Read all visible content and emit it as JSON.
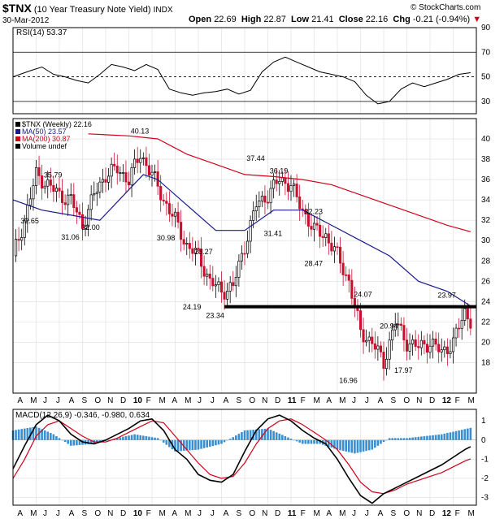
{
  "header": {
    "ticker": "$TNX",
    "name": "(10 Year Treasury Note Yield)",
    "exchange": "INDX",
    "date": "30-Mar-2012",
    "open_label": "Open",
    "open": "22.69",
    "high_label": "High",
    "high": "22.87",
    "low_label": "Low",
    "low": "21.41",
    "close_label": "Close",
    "close": "22.16",
    "chg_label": "Chg",
    "chg": "-0.21 (-0.94%)",
    "chg_arrow": "▼",
    "watermark": "© StockCharts.com"
  },
  "colors": {
    "rsi_line": "#000000",
    "ma50": "#1a1a8c",
    "ma200": "#d0021b",
    "candle_up": "#000000",
    "candle_down": "#c8102e",
    "macd_hist": "#3a8fd0",
    "macd_line": "#000000",
    "macd_signal": "#d0021b",
    "support_line": "#000000"
  },
  "chart_data": [
    {
      "type": "line",
      "panel": "rsi",
      "label": "RSI(14) 53.37",
      "ylim": [
        20,
        90
      ],
      "y_ticks": [
        30,
        50,
        70,
        90
      ],
      "ref_lines": [
        30,
        50,
        70
      ],
      "x_weeks": [
        0,
        6,
        10,
        14,
        18,
        22,
        26,
        30,
        34,
        38,
        42,
        46,
        50,
        54,
        58,
        62,
        66,
        70,
        74,
        78,
        82,
        86,
        90,
        94,
        98,
        102,
        106,
        110,
        114,
        118,
        122,
        126,
        130,
        134,
        138,
        142,
        146,
        150,
        154,
        158
      ],
      "values": [
        50,
        55,
        58,
        52,
        50,
        47,
        45,
        52,
        60,
        58,
        55,
        60,
        56,
        40,
        37,
        35,
        37,
        38,
        40,
        36,
        39,
        54,
        62,
        66,
        62,
        58,
        54,
        52,
        50,
        46,
        35,
        28,
        30,
        40,
        45,
        42,
        45,
        48,
        52,
        53.37
      ]
    },
    {
      "type": "candlestick",
      "panel": "price",
      "legend": [
        "$TNX (Weekly) 22.16",
        "MA(50) 23.57",
        "MA(200) 30.87",
        "Volume undef"
      ],
      "ylim": [
        15,
        42
      ],
      "y_ticks": [
        18,
        20,
        22,
        24,
        26,
        28,
        30,
        32,
        34,
        36,
        38,
        40
      ],
      "x_start": "Apr 2009",
      "x_end": "Mar 2012",
      "x_labels": [
        "A",
        "M",
        "J",
        "J",
        "A",
        "S",
        "O",
        "N",
        "D",
        "10",
        "F",
        "M",
        "A",
        "M",
        "J",
        "J",
        "A",
        "S",
        "O",
        "N",
        "D",
        "11",
        "F",
        "M",
        "A",
        "M",
        "J",
        "J",
        "A",
        "S",
        "O",
        "N",
        "D",
        "12",
        "F",
        "M"
      ],
      "close_anchors": {
        "x_weeks": [
          0,
          4,
          8,
          12,
          16,
          20,
          24,
          28,
          32,
          36,
          40,
          44,
          48,
          52,
          56,
          60,
          64,
          68,
          72,
          76,
          80,
          84,
          88,
          92,
          96,
          98,
          100,
          104,
          108,
          112,
          116,
          120,
          124,
          128,
          132,
          136,
          140,
          144,
          148,
          152,
          156,
          158
        ],
        "values": [
          28.5,
          32.0,
          36.5,
          35.5,
          34.5,
          34.0,
          31.5,
          34.5,
          36.5,
          37.0,
          36.0,
          38.5,
          36.5,
          34.0,
          32.0,
          29.5,
          28.5,
          26.0,
          25.0,
          25.5,
          29.5,
          33.5,
          34.5,
          36.0,
          35.5,
          34.0,
          33.0,
          31.0,
          30.5,
          28.5,
          26.0,
          21.0,
          20.0,
          18.0,
          22.0,
          20.0,
          19.5,
          20.0,
          19.0,
          20.0,
          23.0,
          22.16
        ]
      },
      "ma50": {
        "x_weeks": [
          0,
          10,
          20,
          30,
          40,
          45,
          50,
          60,
          70,
          80,
          90,
          100,
          110,
          120,
          130,
          140,
          150,
          158
        ],
        "values": [
          34.0,
          33.0,
          32.5,
          32.0,
          35.0,
          36.5,
          36.0,
          33.5,
          31.0,
          31.0,
          33.0,
          33.0,
          31.5,
          30.0,
          28.5,
          26.0,
          25.0,
          23.57
        ]
      },
      "ma200": {
        "x_weeks": [
          26,
          40,
          50,
          60,
          70,
          80,
          90,
          100,
          110,
          120,
          130,
          140,
          150,
          158
        ],
        "values": [
          40.5,
          40.3,
          40.0,
          38.5,
          37.5,
          36.5,
          36.3,
          36.0,
          35.5,
          34.5,
          33.5,
          32.5,
          31.5,
          30.87
        ]
      },
      "support_line": {
        "x_weeks": [
          73,
          160
        ],
        "value": 23.5
      },
      "annotations": [
        {
          "text": "32.65",
          "week": 6,
          "value": 32.65,
          "pos": "below"
        },
        {
          "text": "35.79",
          "week": 14,
          "value": 35.79,
          "pos": "above"
        },
        {
          "text": "31.06",
          "week": 20,
          "value": 31.06,
          "pos": "below"
        },
        {
          "text": "32.00",
          "week": 27,
          "value": 32.0,
          "pos": "below"
        },
        {
          "text": "40.13",
          "week": 44,
          "value": 40.13,
          "pos": "above"
        },
        {
          "text": "30.98",
          "week": 53,
          "value": 30.98,
          "pos": "below"
        },
        {
          "text": "28.27",
          "week": 66,
          "value": 28.27,
          "pos": "above"
        },
        {
          "text": "24.19",
          "week": 62,
          "value": 24.19,
          "pos": "below"
        },
        {
          "text": "23.34",
          "week": 70,
          "value": 23.34,
          "pos": "below"
        },
        {
          "text": "37.44",
          "week": 84,
          "value": 37.44,
          "pos": "above"
        },
        {
          "text": "36.19",
          "week": 92,
          "value": 36.19,
          "pos": "above"
        },
        {
          "text": "31.41",
          "week": 90,
          "value": 31.41,
          "pos": "below"
        },
        {
          "text": "32.23",
          "week": 104,
          "value": 32.23,
          "pos": "above"
        },
        {
          "text": "28.47",
          "week": 104,
          "value": 28.47,
          "pos": "below"
        },
        {
          "text": "24.07",
          "week": 121,
          "value": 24.07,
          "pos": "above"
        },
        {
          "text": "16.96",
          "week": 116,
          "value": 16.96,
          "pos": "below"
        },
        {
          "text": "20.94",
          "week": 130,
          "value": 20.94,
          "pos": "above"
        },
        {
          "text": "17.97",
          "week": 135,
          "value": 17.97,
          "pos": "below"
        },
        {
          "text": "23.97",
          "week": 150,
          "value": 23.97,
          "pos": "above"
        }
      ]
    },
    {
      "type": "line",
      "panel": "macd",
      "label": "MACD(12,26,9) -0.346, -0.980, 0.634",
      "ylim": [
        -3.4,
        1.6
      ],
      "y_ticks": [
        -3,
        -2,
        -1,
        0,
        1
      ],
      "x_weeks": [
        0,
        4,
        8,
        12,
        16,
        20,
        24,
        28,
        32,
        36,
        40,
        44,
        48,
        52,
        56,
        60,
        64,
        68,
        72,
        76,
        80,
        84,
        88,
        92,
        96,
        100,
        104,
        108,
        112,
        116,
        120,
        124,
        128,
        132,
        136,
        140,
        144,
        148,
        152,
        156,
        158
      ],
      "macd": [
        -1.5,
        -0.3,
        0.8,
        1.3,
        1.0,
        0.3,
        -0.1,
        -0.2,
        0.0,
        0.3,
        0.6,
        1.0,
        1.1,
        0.5,
        -0.5,
        -1.0,
        -1.8,
        -2.1,
        -2.2,
        -1.8,
        -0.6,
        0.5,
        1.1,
        1.3,
        1.0,
        0.5,
        0.1,
        -0.2,
        -1.0,
        -2.0,
        -2.9,
        -3.3,
        -2.8,
        -2.5,
        -2.2,
        -1.9,
        -1.6,
        -1.3,
        -0.9,
        -0.5,
        -0.346
      ],
      "signal": [
        -2.0,
        -1.0,
        0.2,
        0.8,
        1.0,
        0.6,
        0.2,
        -0.1,
        -0.1,
        0.1,
        0.4,
        0.7,
        1.0,
        0.9,
        0.2,
        -0.5,
        -1.2,
        -1.8,
        -2.0,
        -1.9,
        -1.2,
        -0.2,
        0.6,
        1.0,
        1.1,
        0.8,
        0.4,
        0.0,
        -0.5,
        -1.3,
        -2.2,
        -2.7,
        -2.8,
        -2.6,
        -2.3,
        -2.1,
        -1.9,
        -1.7,
        -1.4,
        -1.1,
        -0.98
      ],
      "hist_x_weeks": [
        0,
        8,
        14,
        20,
        28,
        36,
        42,
        50,
        56,
        64,
        72,
        80,
        88,
        94,
        100,
        106,
        112,
        118,
        124,
        130,
        136,
        142,
        148,
        154,
        158
      ],
      "histogram": [
        0.5,
        0.7,
        0.3,
        -0.3,
        -0.2,
        0.1,
        0.3,
        0.1,
        -0.6,
        -0.5,
        -0.2,
        0.5,
        0.6,
        0.2,
        -0.2,
        -0.2,
        -0.5,
        -0.7,
        -0.5,
        0.1,
        0.1,
        0.2,
        0.3,
        0.5,
        0.634
      ],
      "x_labels": [
        "A",
        "M",
        "J",
        "J",
        "A",
        "S",
        "O",
        "N",
        "D",
        "10",
        "F",
        "M",
        "A",
        "M",
        "J",
        "J",
        "A",
        "S",
        "O",
        "N",
        "D",
        "11",
        "F",
        "M",
        "A",
        "M",
        "J",
        "J",
        "A",
        "S",
        "O",
        "N",
        "D",
        "12",
        "F",
        "M"
      ]
    }
  ]
}
